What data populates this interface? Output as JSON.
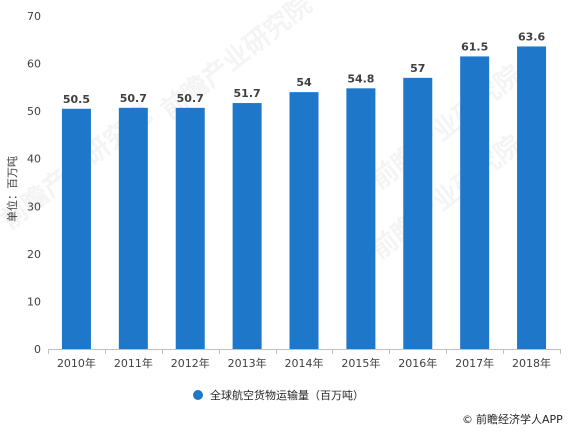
{
  "chart_data": {
    "type": "bar",
    "categories": [
      "2010年",
      "2011年",
      "2012年",
      "2013年",
      "2014年",
      "2015年",
      "2016年",
      "2017年",
      "2018年"
    ],
    "series": [
      {
        "name": "全球航空货物运输量（百万吨）",
        "values": [
          50.5,
          50.7,
          50.7,
          51.7,
          54,
          54.8,
          57,
          61.5,
          63.6
        ],
        "labels": [
          "50.5",
          "50.7",
          "50.7",
          "51.7",
          "54",
          "54.8",
          "57",
          "61.5",
          "63.6"
        ],
        "color": "#1F77C9"
      }
    ],
    "ylabel": "单位：百万吨",
    "xlabel": "",
    "ylim": [
      0,
      70
    ],
    "yticks": [
      0,
      10,
      20,
      30,
      40,
      50,
      60,
      70
    ],
    "grid": false,
    "legend_position": "bottom-center"
  },
  "watermark": "前瞻产业研究院",
  "footer": {
    "text": "前瞻经济学人APP"
  }
}
